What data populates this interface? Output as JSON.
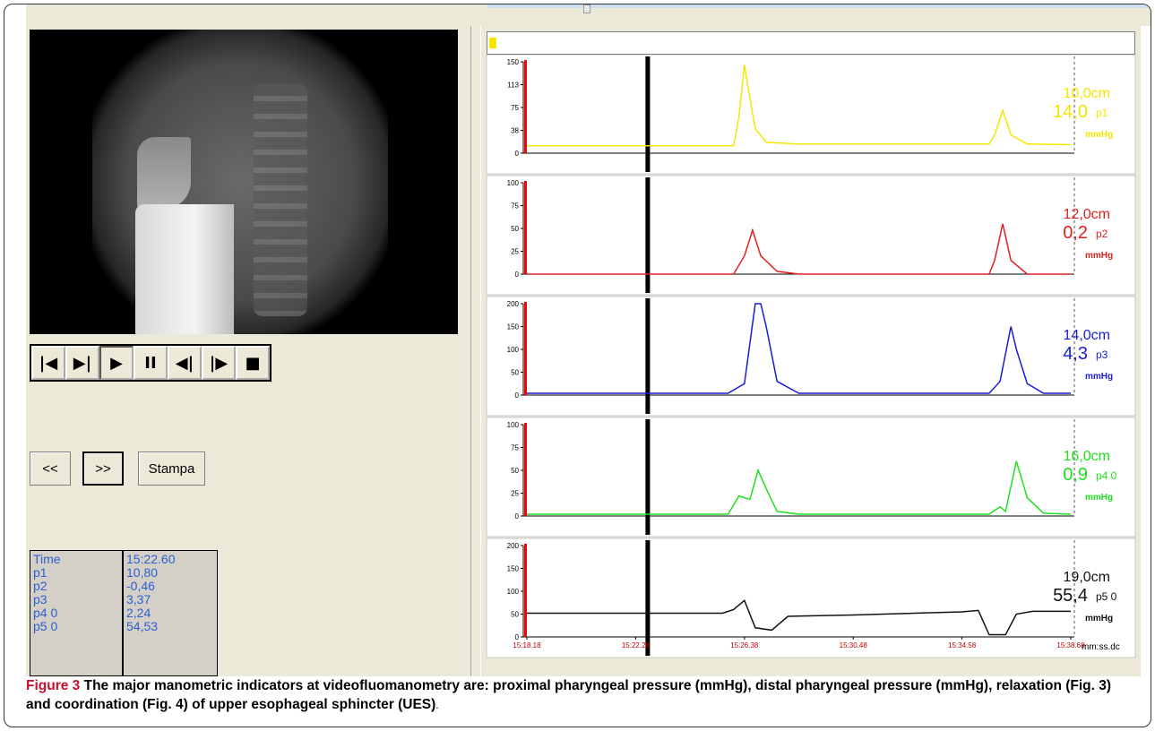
{
  "controls": [
    {
      "name": "skip-start-icon",
      "glyph": "|◀"
    },
    {
      "name": "step-forward-end-icon",
      "glyph": "▶|"
    },
    {
      "name": "play-icon",
      "glyph": "▶"
    },
    {
      "name": "pause-icon",
      "glyph": "II"
    },
    {
      "name": "step-back-icon",
      "glyph": "◀|"
    },
    {
      "name": "step-forward-icon",
      "glyph": "|▶"
    },
    {
      "name": "stop-icon",
      "glyph": "■"
    }
  ],
  "nav": {
    "prev_label": "<<",
    "next_label": ">>",
    "print_label": "Stampa"
  },
  "readout": {
    "labels": [
      "Time",
      "p1",
      "p2",
      "p3",
      "p4 0",
      "p5 0"
    ],
    "values": [
      "15:22.60",
      "10,80",
      "-0,46",
      "3,37",
      "2,24",
      "54,53"
    ]
  },
  "colors": {
    "p1": "#f2e700",
    "p2": "#e02020",
    "p3": "#1a1ad8",
    "p4": "#1ee01e",
    "p5": "#111111",
    "marker_red": "#ff0000",
    "cursor": "#000000"
  },
  "x_axis": {
    "ticks": [
      "15:18.18",
      "15:22.28",
      "15:26.38",
      "15:30.48",
      "15:34.58",
      "15:38.68"
    ],
    "unit": "mm:ss.dc"
  },
  "chart_data": [
    {
      "type": "line",
      "name": "p1",
      "yticks": [
        "150",
        "113",
        "75",
        "38",
        "0"
      ],
      "ylim": [
        0,
        150
      ],
      "position_label": "10,0cm",
      "value_label": "14,0",
      "unit": "mmHg",
      "x": [
        0,
        0.38,
        0.39,
        0.4,
        0.41,
        0.42,
        0.44,
        0.5,
        0.7,
        0.85,
        0.86,
        0.875,
        0.89,
        0.92,
        1.0
      ],
      "values": [
        12,
        12,
        60,
        145,
        90,
        40,
        18,
        15,
        15,
        15,
        30,
        70,
        30,
        15,
        14
      ]
    },
    {
      "type": "line",
      "name": "p2",
      "yticks": [
        "100",
        "75",
        "50",
        "25",
        "0"
      ],
      "ylim": [
        0,
        100
      ],
      "position_label": "12,0cm",
      "value_label": "0,2",
      "unit": "mmHg",
      "x": [
        0,
        0.38,
        0.4,
        0.415,
        0.43,
        0.46,
        0.5,
        0.85,
        0.86,
        0.875,
        0.89,
        0.92,
        1.0
      ],
      "values": [
        0,
        0,
        20,
        48,
        20,
        3,
        0,
        0,
        15,
        55,
        15,
        0,
        0
      ]
    },
    {
      "type": "line",
      "name": "p3",
      "yticks": [
        "200",
        "150",
        "100",
        "50",
        "0"
      ],
      "ylim": [
        0,
        200
      ],
      "position_label": "14,0cm",
      "value_label": "4,3",
      "unit": "mmHg",
      "x": [
        0,
        0.37,
        0.4,
        0.42,
        0.43,
        0.44,
        0.46,
        0.5,
        0.85,
        0.87,
        0.89,
        0.9,
        0.92,
        0.95,
        1.0
      ],
      "values": [
        4,
        4,
        25,
        200,
        200,
        150,
        30,
        4,
        4,
        30,
        150,
        100,
        25,
        4,
        4
      ]
    },
    {
      "type": "line",
      "name": "p4 0",
      "yticks": [
        "100",
        "75",
        "50",
        "25",
        "0"
      ],
      "ylim": [
        0,
        100
      ],
      "position_label": "16,0cm",
      "value_label": "0,9",
      "unit": "mmHg",
      "x": [
        0,
        0.37,
        0.39,
        0.41,
        0.425,
        0.44,
        0.46,
        0.5,
        0.85,
        0.87,
        0.88,
        0.9,
        0.92,
        0.95,
        1.0
      ],
      "values": [
        2,
        2,
        22,
        18,
        50,
        30,
        5,
        2,
        2,
        10,
        5,
        60,
        20,
        3,
        2
      ]
    },
    {
      "type": "line",
      "name": "p5 0",
      "yticks": [
        "200",
        "150",
        "100",
        "50",
        "0"
      ],
      "ylim": [
        0,
        200
      ],
      "position_label": "19,0cm",
      "value_label": "55,4",
      "unit": "mmHg",
      "x": [
        0,
        0.36,
        0.38,
        0.4,
        0.42,
        0.45,
        0.48,
        0.6,
        0.8,
        0.83,
        0.85,
        0.88,
        0.9,
        0.93,
        1.0
      ],
      "values": [
        52,
        52,
        60,
        80,
        20,
        15,
        45,
        48,
        55,
        58,
        5,
        5,
        50,
        56,
        56
      ]
    }
  ],
  "caption": {
    "fig": "Figure 3",
    "text": " The major manometric indicators at videofluomanometry are: proximal pharyngeal pressure (mmHg), distal pharyngeal pressure (mmHg), relaxation (Fig. 3) and coordination (Fig. 4) of upper esophageal sphincter (UES)",
    "tail": "."
  }
}
